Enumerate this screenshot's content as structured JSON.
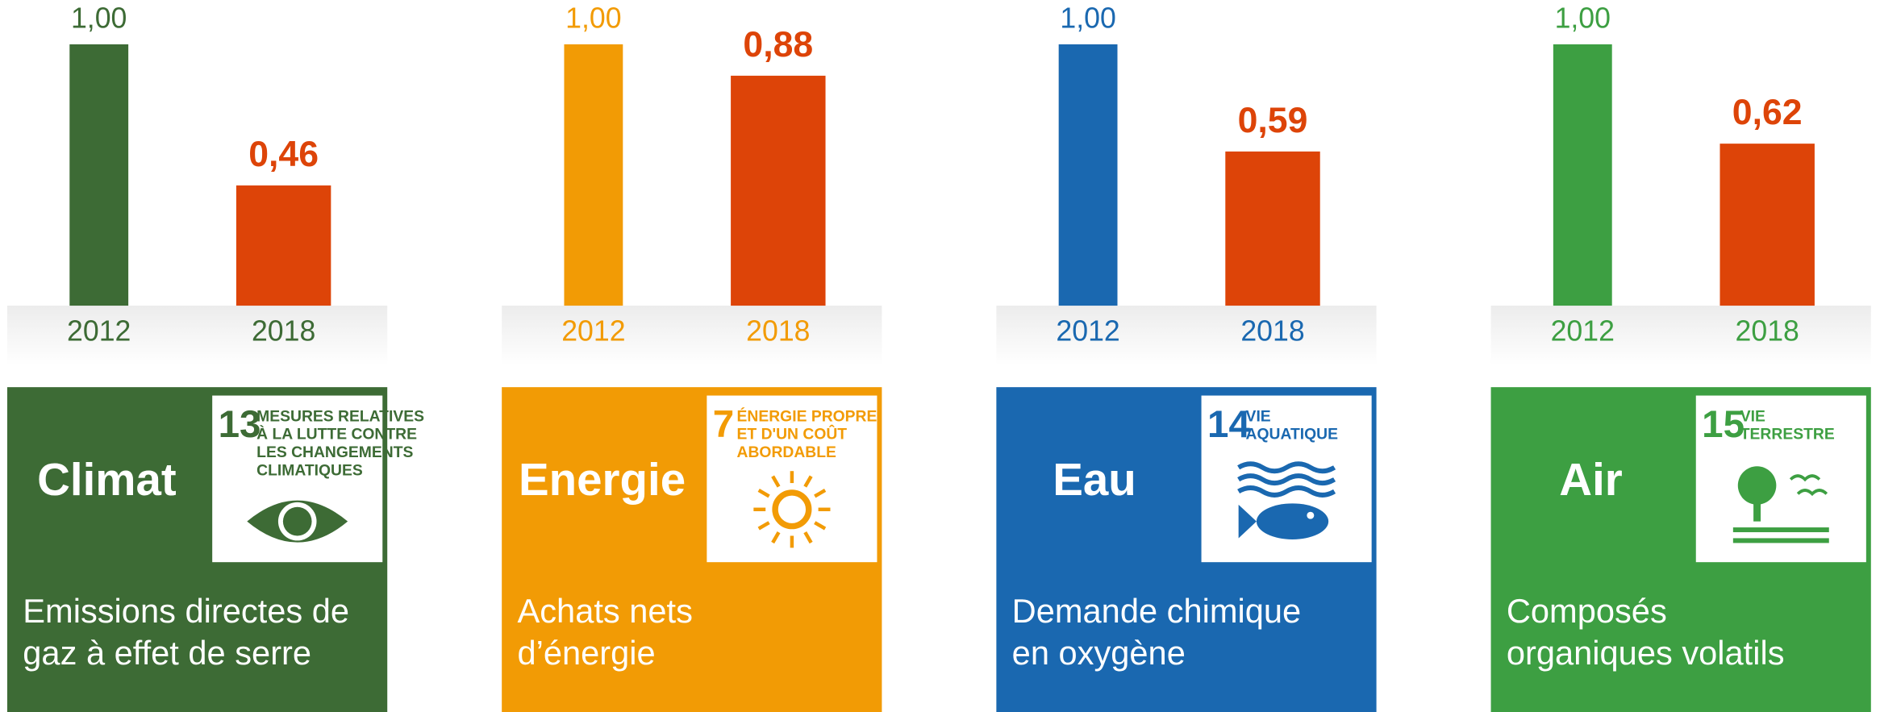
{
  "chart_data": [
    {
      "type": "bar",
      "title": "Climat",
      "color": "#3d6b35",
      "description": [
        "Emissions directes de",
        "gaz à effet de serre"
      ],
      "sdg": {
        "number": "13",
        "label": [
          "MESURES RELATIVES",
          "À LA LUTTE CONTRE",
          "LES CHANGEMENTS",
          "CLIMATIQUES"
        ]
      },
      "categories": [
        "2012",
        "2018"
      ],
      "values": [
        1.0,
        0.46
      ],
      "value_labels": [
        "1,00",
        "0,46"
      ],
      "colors": [
        "#3d6b35",
        "#dd4408"
      ],
      "ylim": [
        0,
        1
      ]
    },
    {
      "type": "bar",
      "title": "Energie",
      "color": "#f29b05",
      "description": [
        "Achats nets",
        "d’énergie"
      ],
      "sdg": {
        "number": "7",
        "label": [
          "ÉNERGIE PROPRE",
          "ET D'UN COÛT",
          "ABORDABLE"
        ]
      },
      "categories": [
        "2012",
        "2018"
      ],
      "values": [
        1.0,
        0.88
      ],
      "value_labels": [
        "1,00",
        "0,88"
      ],
      "colors": [
        "#f29b05",
        "#dd4408"
      ],
      "ylim": [
        0,
        1
      ]
    },
    {
      "type": "bar",
      "title": "Eau",
      "color": "#1a68b0",
      "description": [
        "Demande chimique",
        "en oxygène"
      ],
      "sdg": {
        "number": "14",
        "label": [
          "VIE",
          "AQUATIQUE"
        ]
      },
      "categories": [
        "2012",
        "2018"
      ],
      "values": [
        1.0,
        0.59
      ],
      "value_labels": [
        "1,00",
        "0,59"
      ],
      "colors": [
        "#1a68b0",
        "#dd4408"
      ],
      "ylim": [
        0,
        1
      ]
    },
    {
      "type": "bar",
      "title": "Air",
      "color": "#3d9f42",
      "description": [
        "Composés",
        "organiques volatils"
      ],
      "sdg": {
        "number": "15",
        "label": [
          "VIE",
          "TERRESTRE"
        ]
      },
      "categories": [
        "2012",
        "2018"
      ],
      "values": [
        1.0,
        0.62
      ],
      "value_labels": [
        "1,00",
        "0,62"
      ],
      "colors": [
        "#3d9f42",
        "#dd4408"
      ],
      "ylim": [
        0,
        1
      ]
    }
  ]
}
